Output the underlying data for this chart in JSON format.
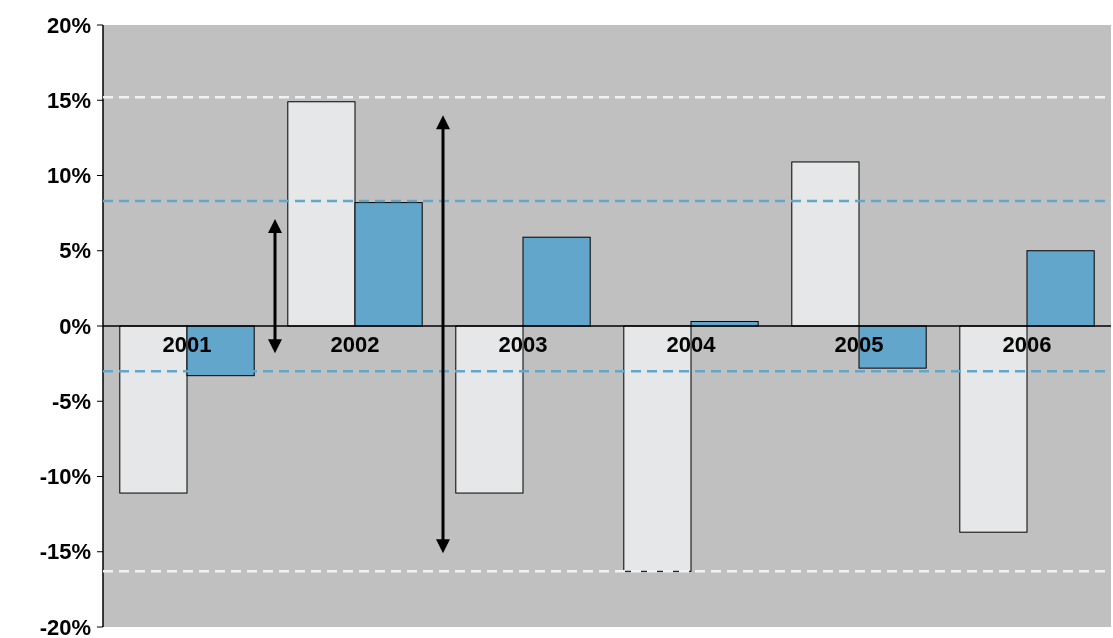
{
  "chart_data": {
    "type": "bar",
    "categories": [
      "2001",
      "2002",
      "2003",
      "2004",
      "2005",
      "2006"
    ],
    "series": [
      {
        "color": "#e6e7e8",
        "values": [
          -11.1,
          14.9,
          -11.1,
          -16.3,
          10.9,
          -13.7
        ]
      },
      {
        "color": "#62a6cb",
        "values": [
          -3.3,
          8.2,
          5.9,
          0.3,
          -2.8,
          5.0
        ]
      }
    ],
    "ylim": [
      -20,
      20
    ],
    "yticks": [
      {
        "value": -20,
        "label": "-20%"
      },
      {
        "value": -15,
        "label": "-15%"
      },
      {
        "value": -10,
        "label": "-10%"
      },
      {
        "value": -5,
        "label": "-5%"
      },
      {
        "value": 0,
        "label": "0%"
      },
      {
        "value": 5,
        "label": "5%"
      },
      {
        "value": 10,
        "label": "10%"
      },
      {
        "value": 15,
        "label": "15%"
      },
      {
        "value": 20,
        "label": "20%"
      }
    ],
    "ref_lines": [
      {
        "axis": "y",
        "value": 15.2,
        "color": "#f2f2f2",
        "line_style": "dashed"
      },
      {
        "axis": "y",
        "value": -16.3,
        "color": "#f2f2f2",
        "line_style": "dashed"
      },
      {
        "axis": "y",
        "value": 8.3,
        "color": "#62a6cb",
        "line_style": "dashed"
      },
      {
        "axis": "y",
        "value": -3.0,
        "color": "#62a6cb",
        "line_style": "dashed"
      }
    ],
    "grid": false
  }
}
